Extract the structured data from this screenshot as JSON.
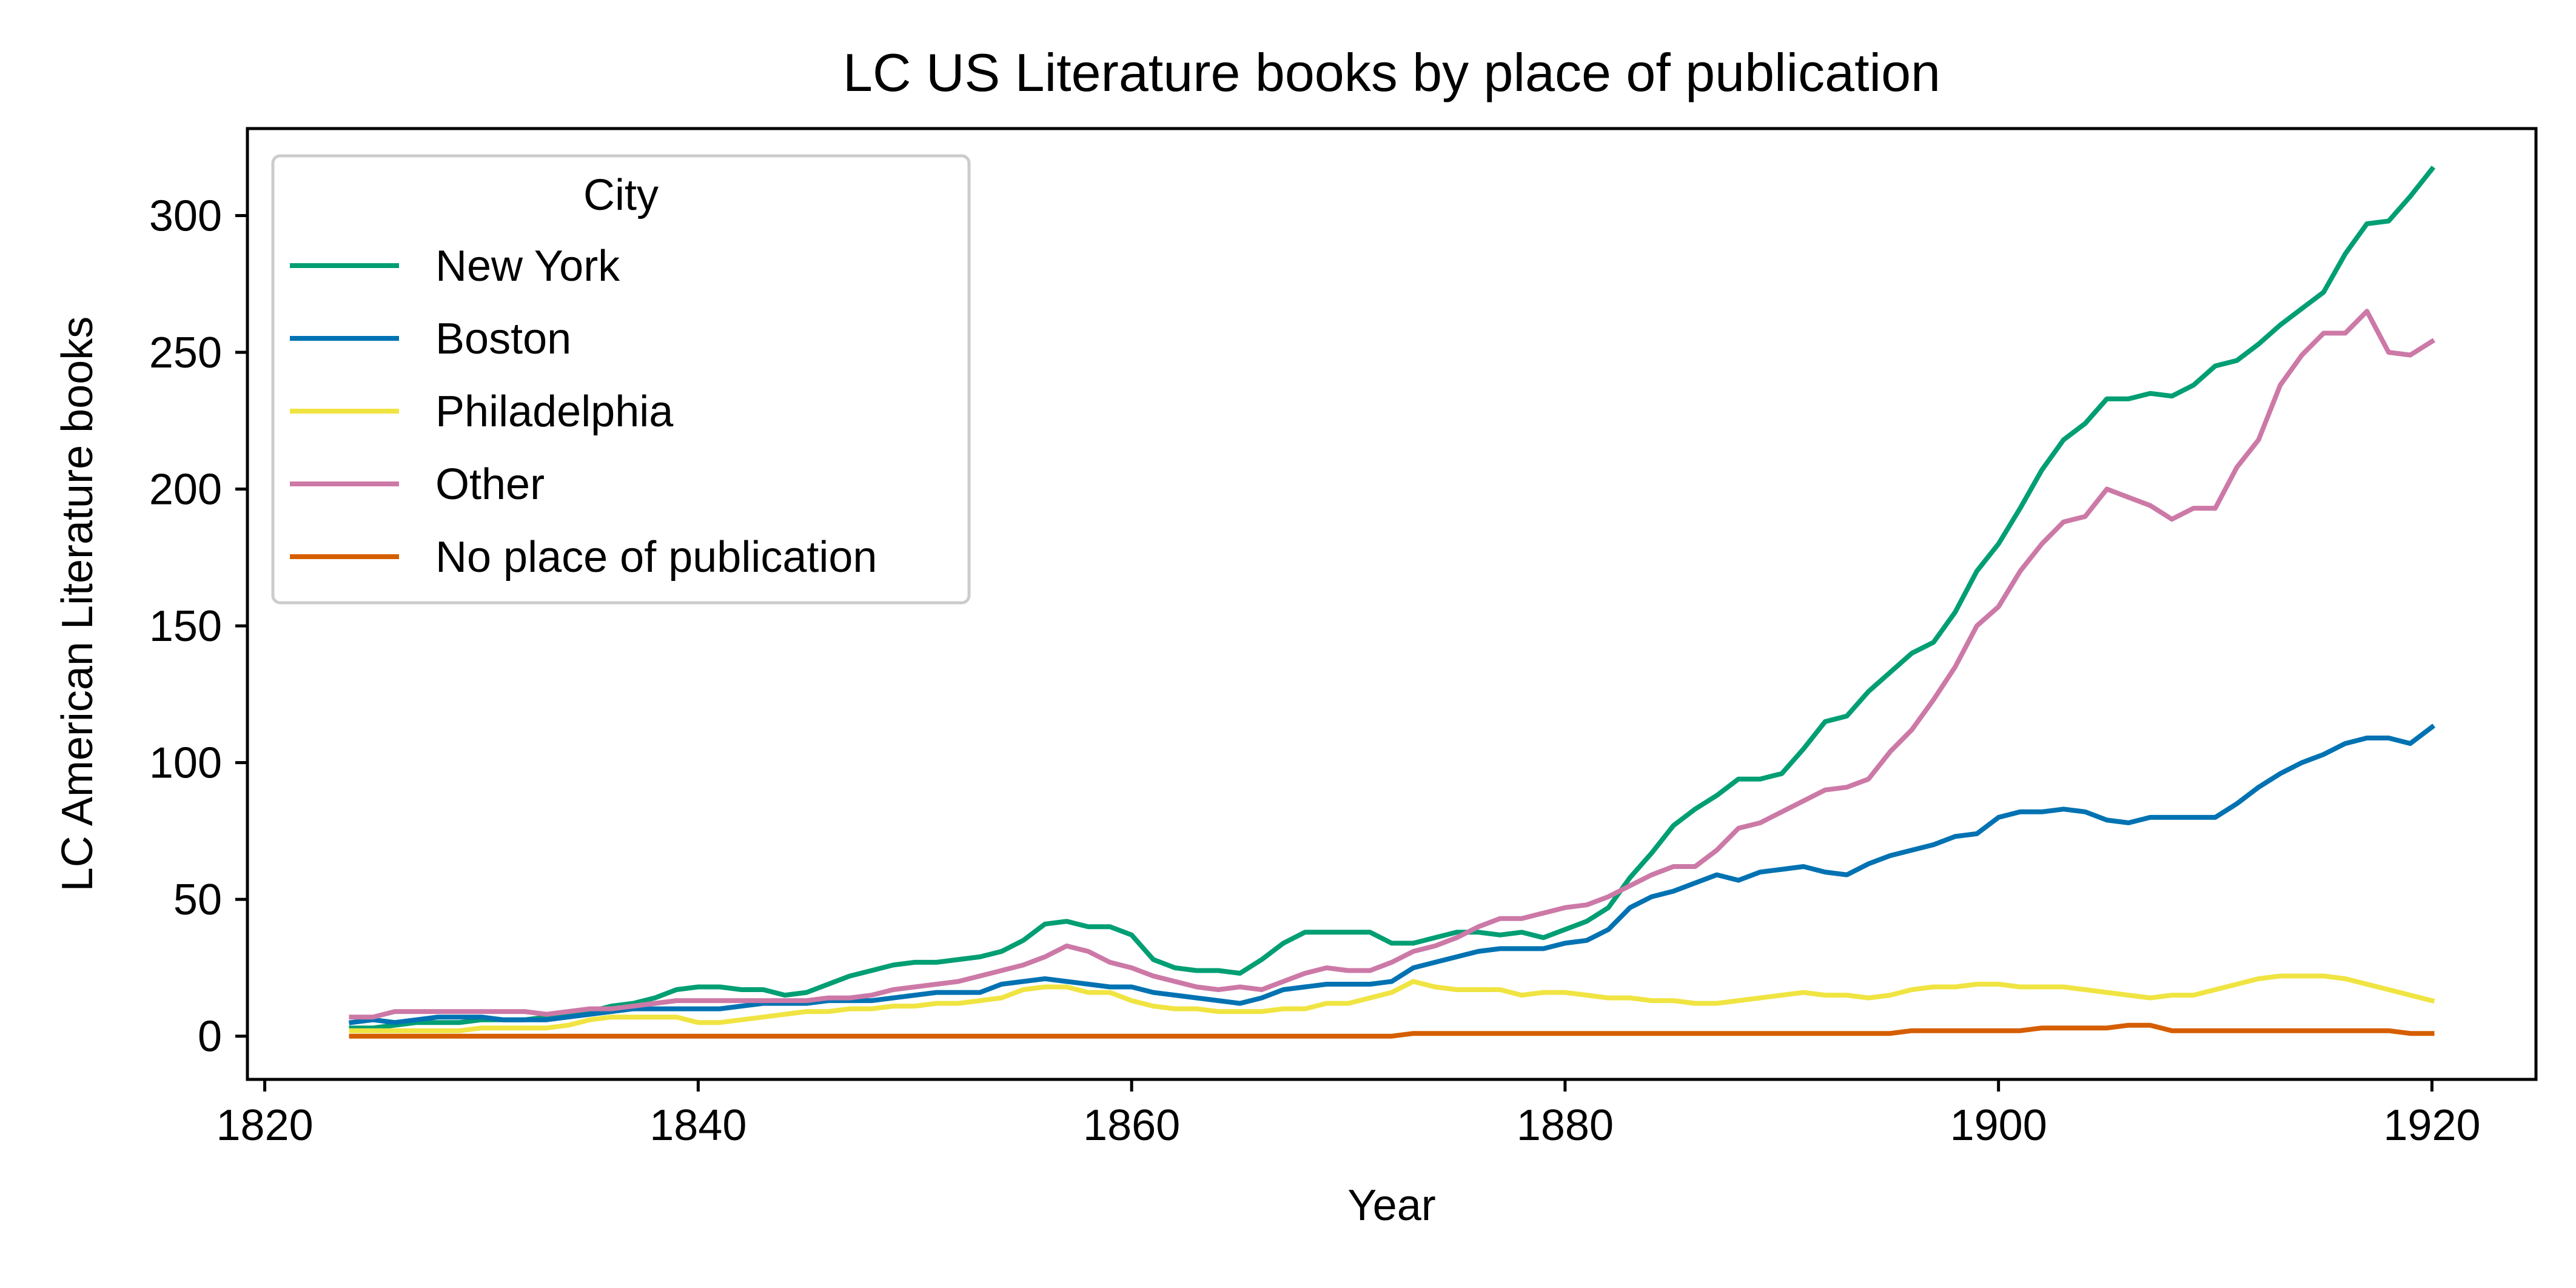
{
  "chart_data": {
    "type": "line",
    "title": "LC US Literature books by place of publication",
    "xlabel": "Year",
    "ylabel": "LC American Literature books",
    "xlim": [
      1819.2,
      1924.8
    ],
    "ylim": [
      -15.8,
      331.8
    ],
    "xticks": [
      1820,
      1840,
      1860,
      1880,
      1900,
      1920
    ],
    "yticks": [
      0,
      50,
      100,
      150,
      200,
      250,
      300
    ],
    "grid": false,
    "legend": {
      "title": "City",
      "placement": "top-left"
    },
    "x": [
      1824,
      1825,
      1826,
      1827,
      1828,
      1829,
      1830,
      1831,
      1832,
      1833,
      1834,
      1835,
      1836,
      1837,
      1838,
      1839,
      1840,
      1841,
      1842,
      1843,
      1844,
      1845,
      1846,
      1847,
      1848,
      1849,
      1850,
      1851,
      1852,
      1853,
      1854,
      1855,
      1856,
      1857,
      1858,
      1859,
      1860,
      1861,
      1862,
      1863,
      1864,
      1865,
      1866,
      1867,
      1868,
      1869,
      1870,
      1871,
      1872,
      1873,
      1874,
      1875,
      1876,
      1877,
      1878,
      1879,
      1880,
      1881,
      1882,
      1883,
      1884,
      1885,
      1886,
      1887,
      1888,
      1889,
      1890,
      1891,
      1892,
      1893,
      1894,
      1895,
      1896,
      1897,
      1898,
      1899,
      1900,
      1901,
      1902,
      1903,
      1904,
      1905,
      1906,
      1907,
      1908,
      1909,
      1910,
      1911,
      1912,
      1913,
      1914,
      1915,
      1916,
      1917,
      1918,
      1919,
      1920
    ],
    "series": [
      {
        "name": "New York",
        "color": "#009e73",
        "values": [
          3,
          3,
          4,
          5,
          5,
          5,
          6,
          6,
          6,
          7,
          8,
          9,
          11,
          12,
          14,
          17,
          18,
          18,
          17,
          17,
          15,
          16,
          19,
          22,
          24,
          26,
          27,
          27,
          28,
          29,
          31,
          35,
          41,
          42,
          40,
          40,
          37,
          28,
          25,
          24,
          24,
          23,
          28,
          34,
          38,
          38,
          38,
          38,
          34,
          34,
          36,
          38,
          38,
          37,
          38,
          36,
          39,
          42,
          47,
          58,
          67,
          77,
          83,
          88,
          94,
          94,
          96,
          105,
          115,
          117,
          126,
          133,
          140,
          144,
          155,
          170,
          180,
          193,
          207,
          218,
          224,
          233,
          233,
          235,
          234,
          238,
          245,
          247,
          253,
          260,
          266,
          272,
          286,
          297,
          298,
          307,
          317
        ]
      },
      {
        "name": "Boston",
        "color": "#0072b2",
        "values": [
          5,
          6,
          5,
          6,
          7,
          7,
          7,
          6,
          6,
          6,
          7,
          8,
          9,
          10,
          10,
          10,
          10,
          10,
          11,
          12,
          12,
          12,
          13,
          13,
          13,
          14,
          15,
          16,
          16,
          16,
          19,
          20,
          21,
          20,
          19,
          18,
          18,
          16,
          15,
          14,
          13,
          12,
          14,
          17,
          18,
          19,
          19,
          19,
          20,
          25,
          27,
          29,
          31,
          32,
          32,
          32,
          34,
          35,
          39,
          47,
          51,
          53,
          56,
          59,
          57,
          60,
          61,
          62,
          60,
          59,
          63,
          66,
          68,
          70,
          73,
          74,
          80,
          82,
          82,
          83,
          82,
          79,
          78,
          80,
          80,
          80,
          80,
          85,
          91,
          96,
          100,
          103,
          107,
          109,
          109,
          107,
          113
        ]
      },
      {
        "name": "Philadelphia",
        "color": "#f0e442",
        "values": [
          2,
          2,
          2,
          2,
          2,
          2,
          3,
          3,
          3,
          3,
          4,
          6,
          7,
          7,
          7,
          7,
          5,
          5,
          6,
          7,
          8,
          9,
          9,
          10,
          10,
          11,
          11,
          12,
          12,
          13,
          14,
          17,
          18,
          18,
          16,
          16,
          13,
          11,
          10,
          10,
          9,
          9,
          9,
          10,
          10,
          12,
          12,
          14,
          16,
          20,
          18,
          17,
          17,
          17,
          15,
          16,
          16,
          15,
          14,
          14,
          13,
          13,
          12,
          12,
          13,
          14,
          15,
          16,
          15,
          15,
          14,
          15,
          17,
          18,
          18,
          19,
          19,
          18,
          18,
          18,
          17,
          16,
          15,
          14,
          15,
          15,
          17,
          19,
          21,
          22,
          22,
          22,
          21,
          19,
          17,
          15,
          13
        ]
      },
      {
        "name": "Other",
        "color": "#cc79a7",
        "values": [
          7,
          7,
          9,
          9,
          9,
          9,
          9,
          9,
          9,
          8,
          9,
          10,
          10,
          11,
          12,
          13,
          13,
          13,
          13,
          13,
          13,
          13,
          14,
          14,
          15,
          17,
          18,
          19,
          20,
          22,
          24,
          26,
          29,
          33,
          31,
          27,
          25,
          22,
          20,
          18,
          17,
          18,
          17,
          20,
          23,
          25,
          24,
          24,
          27,
          31,
          33,
          36,
          40,
          43,
          43,
          45,
          47,
          48,
          51,
          55,
          59,
          62,
          62,
          68,
          76,
          78,
          82,
          86,
          90,
          91,
          94,
          104,
          112,
          123,
          135,
          150,
          157,
          170,
          180,
          188,
          190,
          200,
          197,
          194,
          189,
          193,
          193,
          208,
          218,
          238,
          249,
          257,
          257,
          265,
          250,
          249,
          254
        ]
      },
      {
        "name": "No place of publication",
        "color": "#d55e00",
        "values": [
          0,
          0,
          0,
          0,
          0,
          0,
          0,
          0,
          0,
          0,
          0,
          0,
          0,
          0,
          0,
          0,
          0,
          0,
          0,
          0,
          0,
          0,
          0,
          0,
          0,
          0,
          0,
          0,
          0,
          0,
          0,
          0,
          0,
          0,
          0,
          0,
          0,
          0,
          0,
          0,
          0,
          0,
          0,
          0,
          0,
          0,
          0,
          0,
          0,
          1,
          1,
          1,
          1,
          1,
          1,
          1,
          1,
          1,
          1,
          1,
          1,
          1,
          1,
          1,
          1,
          1,
          1,
          1,
          1,
          1,
          1,
          1,
          2,
          2,
          2,
          2,
          2,
          2,
          3,
          3,
          3,
          3,
          4,
          4,
          2,
          2,
          2,
          2,
          2,
          2,
          2,
          2,
          2,
          2,
          2,
          1,
          1
        ]
      }
    ]
  }
}
